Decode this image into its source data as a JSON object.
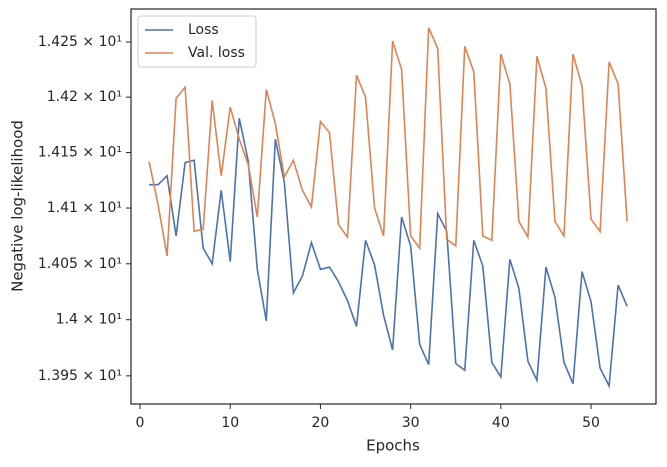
{
  "chart_data": {
    "type": "line",
    "x_label": "Epochs",
    "y_label": "Negative log-likelihood",
    "x": [
      1,
      2,
      3,
      4,
      5,
      6,
      7,
      8,
      9,
      10,
      11,
      12,
      13,
      14,
      15,
      16,
      17,
      18,
      19,
      20,
      21,
      22,
      23,
      24,
      25,
      26,
      27,
      28,
      29,
      30,
      31,
      32,
      33,
      34,
      35,
      36,
      37,
      38,
      39,
      40,
      41,
      42,
      43,
      44,
      45,
      46,
      47,
      48,
      49,
      50,
      51,
      52,
      53,
      54
    ],
    "series": [
      {
        "name": "Loss",
        "color": "#4c72b0",
        "values": [
          14.121,
          14.121,
          14.129,
          14.075,
          14.141,
          14.143,
          14.064,
          14.05,
          14.116,
          14.052,
          14.181,
          14.142,
          14.045,
          13.999,
          14.162,
          14.123,
          14.024,
          14.039,
          14.069,
          14.045,
          14.047,
          14.034,
          14.017,
          13.994,
          14.071,
          14.049,
          14.004,
          13.973,
          14.092,
          14.066,
          13.978,
          13.96,
          14.095,
          14.079,
          13.961,
          13.955,
          14.071,
          14.048,
          13.962,
          13.949,
          14.054,
          14.028,
          13.963,
          13.946,
          14.047,
          14.02,
          13.962,
          13.943,
          14.043,
          14.016,
          13.957,
          13.941,
          14.031,
          14.012
        ]
      },
      {
        "name": "Val. loss",
        "color": "#dd8452",
        "values": [
          14.142,
          14.103,
          14.057,
          14.199,
          14.209,
          14.079,
          14.081,
          14.197,
          14.129,
          14.191,
          14.162,
          14.139,
          14.092,
          14.207,
          14.176,
          14.128,
          14.143,
          14.116,
          14.101,
          14.178,
          14.168,
          14.085,
          14.074,
          14.22,
          14.2,
          14.1,
          14.075,
          14.251,
          14.225,
          14.075,
          14.064,
          14.263,
          14.244,
          14.072,
          14.066,
          14.246,
          14.223,
          14.075,
          14.071,
          14.239,
          14.212,
          14.088,
          14.074,
          14.237,
          14.208,
          14.088,
          14.075,
          14.239,
          14.21,
          14.09,
          14.079,
          14.232,
          14.212,
          14.088
        ]
      }
    ],
    "xlim": [
      -1,
      57.2
    ],
    "xticks": [
      0,
      10,
      20,
      30,
      40,
      50
    ],
    "ylim": [
      13.925,
      14.28
    ],
    "y_scale": "log",
    "yticks": [
      {
        "value": 13.95,
        "label": "1.395 × 10¹"
      },
      {
        "value": 14.0,
        "label": "1.4 × 10¹"
      },
      {
        "value": 14.05,
        "label": "1.405 × 10¹"
      },
      {
        "value": 14.1,
        "label": "1.41 × 10¹"
      },
      {
        "value": 14.15,
        "label": "1.415 × 10¹"
      },
      {
        "value": 14.2,
        "label": "1.42 × 10¹"
      },
      {
        "value": 14.25,
        "label": "1.425 × 10¹"
      }
    ],
    "grid": false,
    "legend": "upper left"
  }
}
